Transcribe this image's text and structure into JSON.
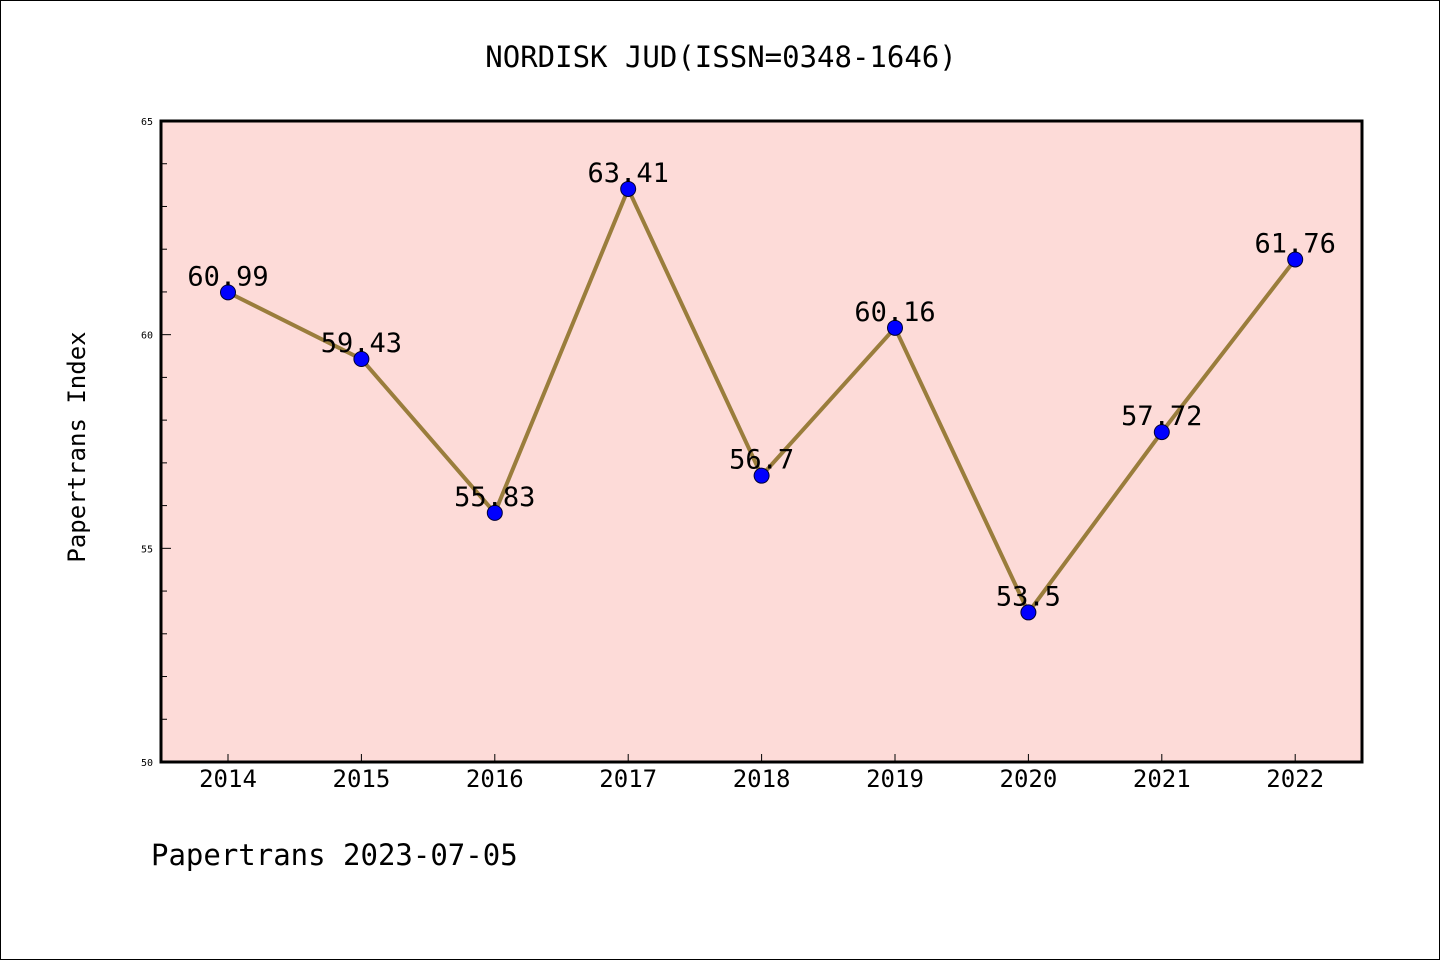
{
  "chart_data": {
    "type": "line",
    "title": "NORDISK JUD(ISSN=0348-1646)",
    "xlabel": "",
    "ylabel": "Papertrans Index",
    "categories": [
      "2014",
      "2015",
      "2016",
      "2017",
      "2018",
      "2019",
      "2020",
      "2021",
      "2022"
    ],
    "series": [
      {
        "values": [
          60.99,
          59.43,
          55.83,
          63.41,
          56.7,
          60.16,
          53.5,
          57.72,
          61.76
        ],
        "data_labels": [
          "60.99",
          "59.43",
          "55.83",
          "63.41",
          "56.7",
          "60.16",
          "53.5",
          "57.72",
          "61.76"
        ]
      }
    ],
    "ylim": [
      50,
      65
    ],
    "yticks": [
      "50",
      "55",
      "60",
      "65"
    ],
    "grid": false,
    "legend": "none"
  },
  "footer": "Papertrans 2023-07-05",
  "colors": {
    "plot_background": "#fddbd8",
    "line": "#9a7d3c",
    "marker": "#0000ff",
    "axes": "#000000"
  }
}
